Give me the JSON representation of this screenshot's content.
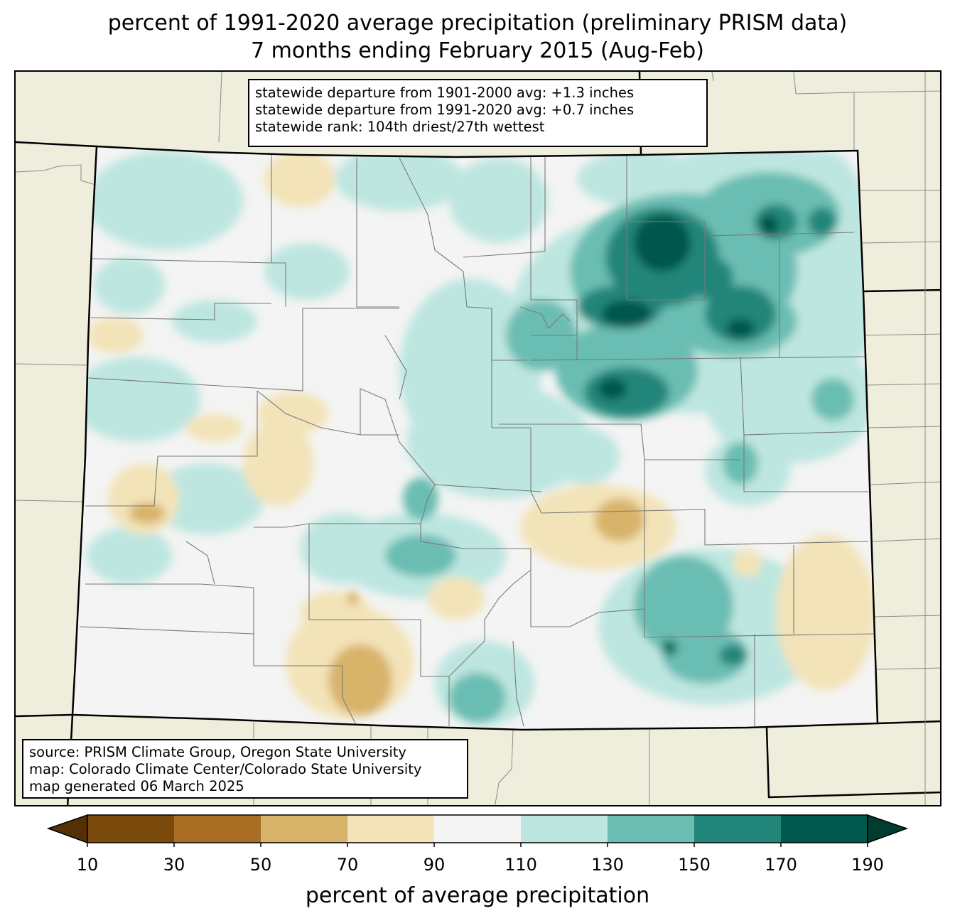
{
  "title_line1": "percent of 1991-2020 average precipitation (preliminary PRISM data)",
  "title_line2": "7 months ending February 2015 (Aug-Feb)",
  "stats": {
    "line1": "statewide departure from 1901-2000 avg: +1.3 inches",
    "line2": "statewide departure from 1991-2020 avg: +0.7 inches",
    "line3": "statewide rank: 104th driest/27th wettest"
  },
  "source": {
    "line1": "source: PRISM Climate Group, Oregon State University",
    "line2": "map: Colorado Climate Center/Colorado State University",
    "line3": "map generated 06 March 2025"
  },
  "colorbar": {
    "label": "percent of average precipitation",
    "ticks": [
      "10",
      "30",
      "50",
      "70",
      "90",
      "110",
      "130",
      "150",
      "170",
      "190"
    ],
    "under_color": "#543005",
    "over_color": "#003c30",
    "colors": [
      "#7a4a0c",
      "#a96d24",
      "#d8b36a",
      "#f3e3b8",
      "#f3f4f3",
      "#bde6e0",
      "#6bbdb2",
      "#218579",
      "#00574b"
    ]
  },
  "colors": {
    "background_land": "#efeedc",
    "state_border": "#000000",
    "county_border": "#808080"
  }
}
